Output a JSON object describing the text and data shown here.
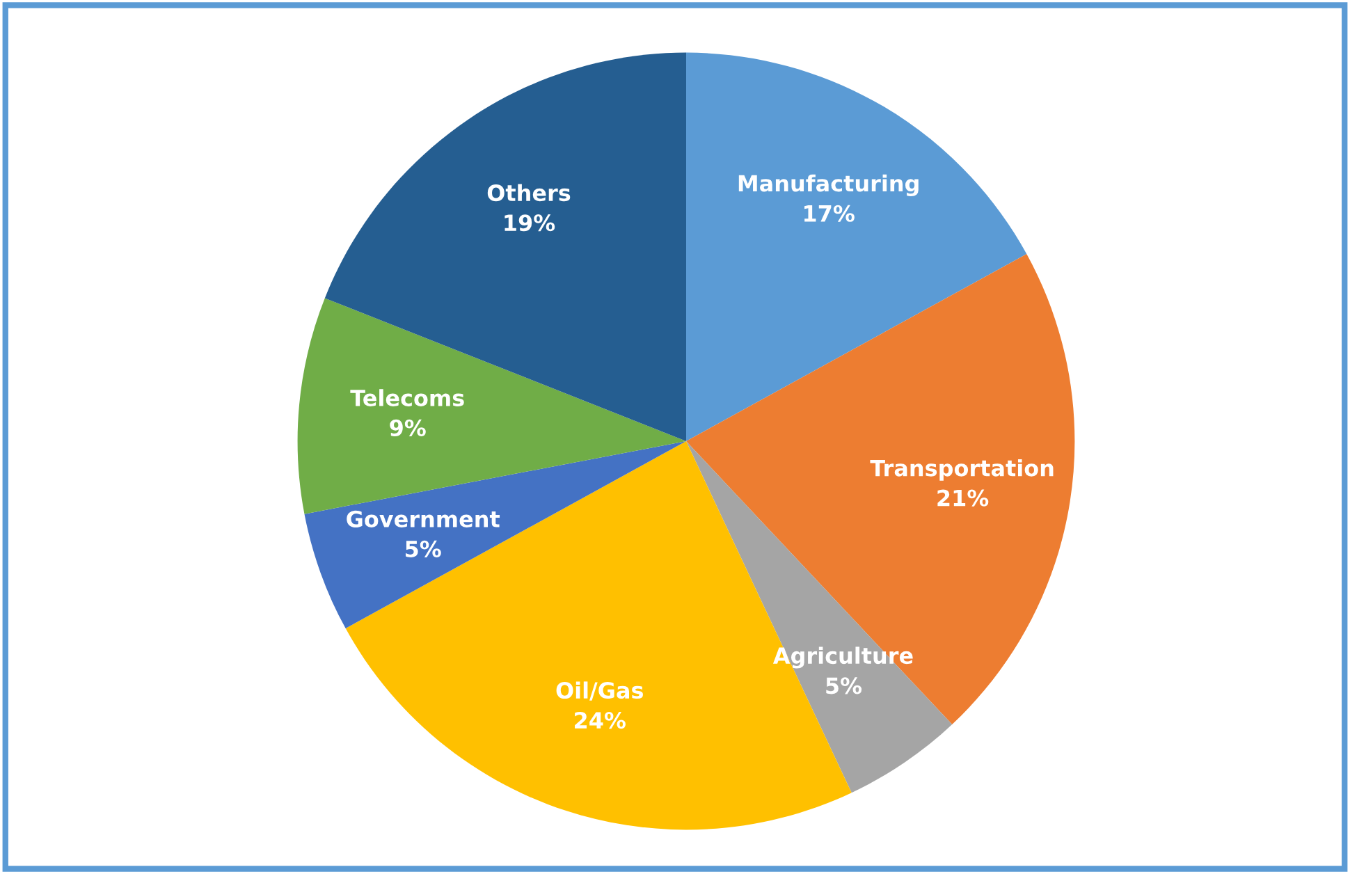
{
  "chart_data": {
    "type": "pie",
    "categories": [
      "Manufacturing",
      "Transportation",
      "Agriculture",
      "Oil/Gas",
      "Government",
      "Telecoms",
      "Others"
    ],
    "values": [
      17,
      21,
      5,
      24,
      5,
      9,
      19
    ],
    "colors": [
      "#5b9bd5",
      "#ed7d31",
      "#a5a5a5",
      "#ffc000",
      "#4472c4",
      "#70ad47",
      "#255e91"
    ],
    "value_labels": [
      "17%",
      "21%",
      "5%",
      "24%",
      "5%",
      "9%",
      "19%"
    ]
  }
}
